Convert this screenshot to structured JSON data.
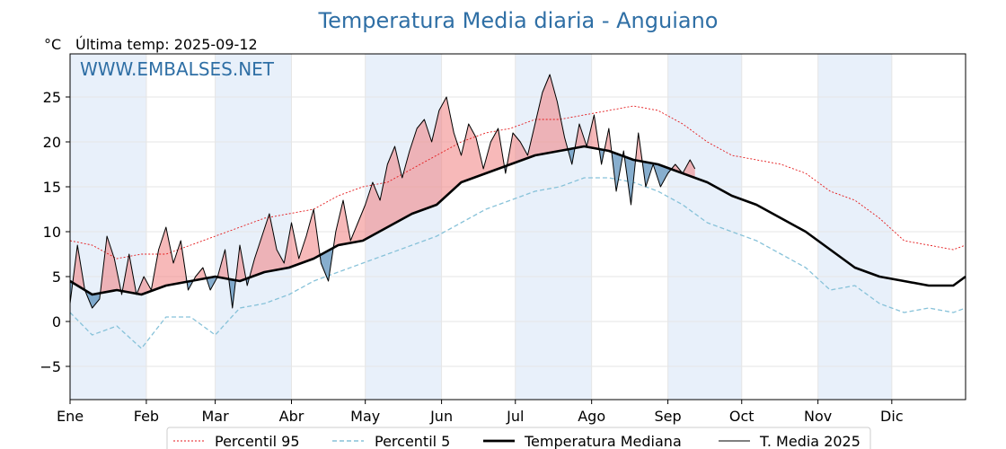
{
  "chart_data": {
    "type": "line",
    "title": "Temperatura Media diaria - Anguiano",
    "unit_label": "°C",
    "last_temp_label": "Última temp: 2025-09-12",
    "watermark": "WWW.EMBALSES.NET",
    "ylim": [
      -8.7,
      29.8
    ],
    "yticks": [
      "−5",
      "0",
      "5",
      "10",
      "15",
      "20",
      "25"
    ],
    "ytick_values": [
      -5,
      0,
      5,
      10,
      15,
      20,
      25
    ],
    "month_labels": [
      "Ene",
      "Feb",
      "Mar",
      "Abr",
      "May",
      "Jun",
      "Jul",
      "Ago",
      "Sep",
      "Oct",
      "Nov",
      "Dic"
    ],
    "month_start_day": [
      1,
      32,
      60,
      91,
      121,
      152,
      182,
      213,
      244,
      274,
      305,
      335
    ],
    "shaded_months": [
      "Ene",
      "Mar",
      "May",
      "Jul",
      "Sep",
      "Nov"
    ],
    "grid": true,
    "legend_position": "bottom",
    "colors": {
      "p95": "#e41a1c",
      "p5": "#87c2d9",
      "median": "#000000",
      "year": "#000000",
      "above_fill": "#f08080",
      "below_fill": "#4682b4",
      "band": "#e8f0fa"
    },
    "series": [
      {
        "key": "p95",
        "name": "Percentil 95",
        "x": [
          1,
          10,
          20,
          30,
          40,
          50,
          60,
          70,
          80,
          90,
          100,
          110,
          120,
          130,
          140,
          150,
          160,
          170,
          180,
          190,
          200,
          210,
          220,
          230,
          240,
          250,
          260,
          270,
          280,
          290,
          300,
          310,
          320,
          330,
          340,
          350,
          360,
          365
        ],
        "y": [
          9.0,
          8.5,
          7.0,
          7.5,
          7.5,
          8.5,
          9.5,
          10.5,
          11.5,
          12.0,
          12.5,
          14.0,
          15.0,
          15.5,
          17.0,
          18.5,
          20.0,
          21.0,
          21.5,
          22.5,
          22.5,
          23.0,
          23.5,
          24.0,
          23.5,
          22.0,
          20.0,
          18.5,
          18.0,
          17.5,
          16.5,
          14.5,
          13.5,
          11.5,
          9.0,
          8.5,
          8.0,
          8.5
        ]
      },
      {
        "key": "p5",
        "name": "Percentil 5",
        "x": [
          1,
          10,
          20,
          30,
          40,
          50,
          60,
          70,
          80,
          90,
          100,
          110,
          120,
          130,
          140,
          150,
          160,
          170,
          180,
          190,
          200,
          210,
          220,
          230,
          240,
          250,
          260,
          270,
          280,
          290,
          300,
          310,
          320,
          330,
          340,
          350,
          360,
          365
        ],
        "y": [
          1.0,
          -1.5,
          -0.5,
          -3.0,
          0.5,
          0.5,
          -1.5,
          1.5,
          2.0,
          3.0,
          4.5,
          5.5,
          6.5,
          7.5,
          8.5,
          9.5,
          11.0,
          12.5,
          13.5,
          14.5,
          15.0,
          16.0,
          16.0,
          15.5,
          14.5,
          13.0,
          11.0,
          10.0,
          9.0,
          7.5,
          6.0,
          3.5,
          4.0,
          2.0,
          1.0,
          1.5,
          1.0,
          1.5
        ]
      },
      {
        "key": "median",
        "name": "Temperatura Mediana",
        "x": [
          1,
          10,
          20,
          30,
          40,
          50,
          60,
          70,
          80,
          90,
          100,
          110,
          120,
          130,
          140,
          150,
          160,
          170,
          180,
          190,
          200,
          210,
          220,
          230,
          240,
          250,
          260,
          270,
          280,
          290,
          300,
          310,
          320,
          330,
          340,
          350,
          360,
          365
        ],
        "y": [
          4.5,
          3.0,
          3.5,
          3.0,
          4.0,
          4.5,
          5.0,
          4.5,
          5.5,
          6.0,
          7.0,
          8.5,
          9.0,
          10.5,
          12.0,
          13.0,
          15.5,
          16.5,
          17.5,
          18.5,
          19.0,
          19.5,
          19.0,
          18.0,
          17.5,
          16.5,
          15.5,
          14.0,
          13.0,
          11.5,
          10.0,
          8.0,
          6.0,
          5.0,
          4.5,
          4.0,
          4.0,
          5.0
        ]
      },
      {
        "key": "year",
        "name": "T. Media 2025",
        "x": [
          1,
          4,
          7,
          10,
          13,
          16,
          19,
          22,
          25,
          28,
          31,
          34,
          37,
          40,
          43,
          46,
          49,
          52,
          55,
          58,
          61,
          64,
          67,
          70,
          73,
          76,
          79,
          82,
          85,
          88,
          91,
          94,
          97,
          100,
          103,
          106,
          109,
          112,
          115,
          118,
          121,
          124,
          127,
          130,
          133,
          136,
          139,
          142,
          145,
          148,
          151,
          154,
          157,
          160,
          163,
          166,
          169,
          172,
          175,
          178,
          181,
          184,
          187,
          190,
          193,
          196,
          199,
          202,
          205,
          208,
          211,
          214,
          217,
          220,
          223,
          226,
          229,
          232,
          235,
          238,
          241,
          244,
          247,
          250,
          253,
          255
        ],
        "y": [
          2.0,
          8.5,
          3.5,
          1.5,
          2.5,
          9.5,
          7.0,
          3.0,
          7.5,
          3.0,
          5.0,
          3.5,
          8.0,
          10.5,
          6.5,
          9.0,
          3.5,
          5.0,
          6.0,
          3.5,
          5.0,
          8.0,
          1.5,
          8.5,
          4.0,
          7.0,
          9.5,
          12.0,
          8.0,
          6.5,
          11.0,
          7.0,
          9.5,
          12.5,
          6.5,
          4.5,
          10.0,
          13.5,
          9.0,
          11.0,
          13.0,
          15.5,
          13.5,
          17.5,
          19.5,
          16.0,
          19.0,
          21.5,
          22.5,
          20.0,
          23.5,
          25.0,
          21.0,
          18.5,
          22.0,
          20.5,
          17.0,
          20.0,
          21.5,
          16.5,
          21.0,
          20.0,
          18.5,
          22.0,
          25.5,
          27.5,
          24.5,
          20.5,
          17.5,
          22.0,
          19.5,
          23.0,
          17.5,
          21.5,
          14.5,
          19.0,
          13.0,
          21.0,
          15.0,
          17.5,
          15.0,
          16.5,
          17.5,
          16.5,
          18.0,
          17.0
        ]
      }
    ]
  }
}
